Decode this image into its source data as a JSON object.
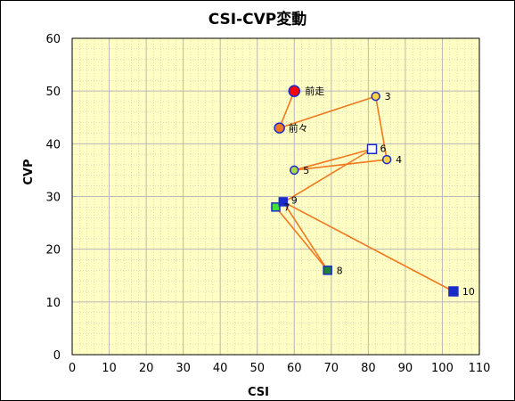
{
  "chart_data": {
    "type": "scatter",
    "title": "CSI-CVP変動",
    "xlabel": "CSI",
    "ylabel": "CVP",
    "xlim": [
      0,
      110
    ],
    "ylim": [
      0,
      60
    ],
    "xticks": [
      "0",
      "10",
      "20",
      "30",
      "40",
      "50",
      "60",
      "70",
      "80",
      "90",
      "100",
      "110"
    ],
    "yticks": [
      "0",
      "10",
      "20",
      "30",
      "40",
      "50",
      "60"
    ],
    "grid": true,
    "colors": {
      "plot_bg": "#ffffc4",
      "grid": "#b8b8b8",
      "line": "#f07820",
      "marker_stroke": "#1a2cc8"
    },
    "points": [
      {
        "label": "前走",
        "x": 60,
        "y": 50,
        "marker": "circle",
        "size": 12,
        "fill": "#ff0000",
        "label_dx": 12,
        "label_dy": 4
      },
      {
        "label": "前々",
        "x": 56,
        "y": 43,
        "marker": "circle",
        "size": 11,
        "fill": "#f07820",
        "label_dx": 10,
        "label_dy": 4
      },
      {
        "label": "3",
        "x": 82,
        "y": 49,
        "marker": "circle",
        "size": 9,
        "fill": "#ffd24a",
        "label_dx": 10,
        "label_dy": 4
      },
      {
        "label": "4",
        "x": 85,
        "y": 37,
        "marker": "circle",
        "size": 9,
        "fill": "#ffd24a",
        "label_dx": 10,
        "label_dy": 4
      },
      {
        "label": "5",
        "x": 60,
        "y": 35,
        "marker": "circle",
        "size": 9,
        "fill": "#a8d840",
        "label_dx": 10,
        "label_dy": 4
      },
      {
        "label": "6",
        "x": 81,
        "y": 39,
        "marker": "square",
        "size": 10,
        "fill": "#ffffff",
        "label_dx": 9,
        "label_dy": 3
      },
      {
        "label": "7",
        "x": 55,
        "y": 28,
        "marker": "square",
        "size": 9,
        "fill": "#40e040",
        "label_dx": 9,
        "label_dy": 4
      },
      {
        "label": "8",
        "x": 69,
        "y": 16,
        "marker": "square",
        "size": 9,
        "fill": "#208040",
        "label_dx": 10,
        "label_dy": 4
      },
      {
        "label": "9",
        "x": 57,
        "y": 29,
        "marker": "square",
        "size": 9,
        "fill": "#1a2cc8",
        "label_dx": 9,
        "label_dy": 2
      },
      {
        "label": "10",
        "x": 103,
        "y": 12,
        "marker": "square",
        "size": 10,
        "fill": "#1a2cc8",
        "label_dx": 10,
        "label_dy": 4
      }
    ]
  }
}
